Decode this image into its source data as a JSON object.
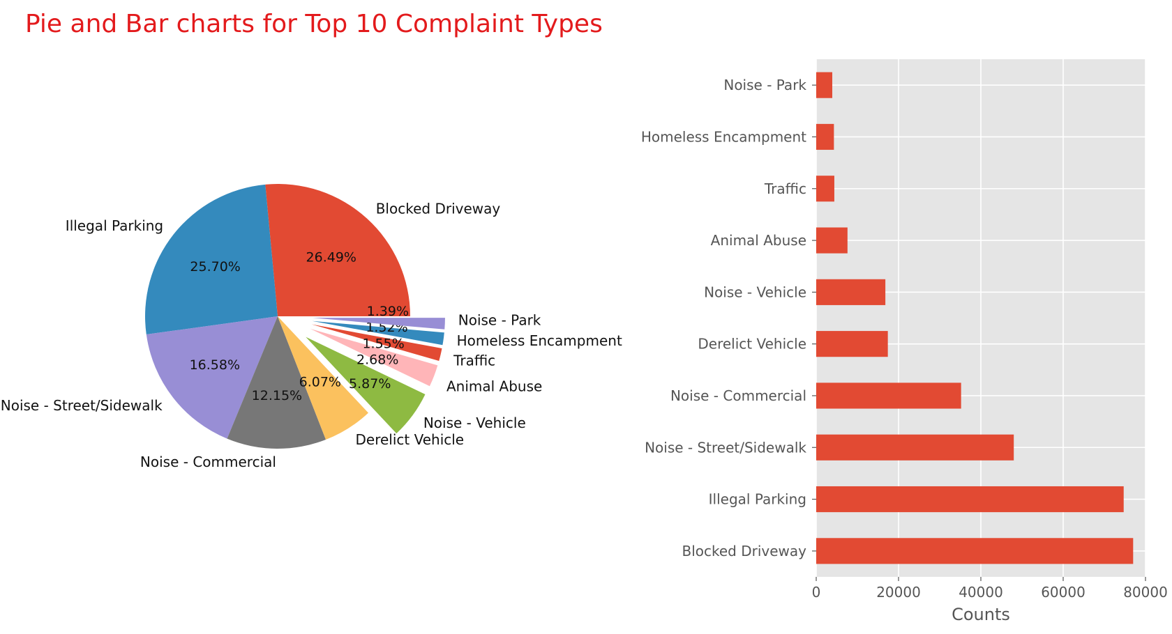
{
  "title": "Pie and Bar charts for Top 10 Complaint Types",
  "colors": {
    "title": "#e31a1c",
    "axes_background": "#e5e5e5",
    "grid": "#ffffff",
    "bar": "#e24a33",
    "tick_text": "#555555"
  },
  "chart_data": [
    {
      "type": "pie",
      "title": "",
      "slices": [
        {
          "label": "Blocked Driveway",
          "value": 26.49,
          "pct_label": "26.49%",
          "color": "#e24a33",
          "exploded": false
        },
        {
          "label": "Illegal Parking",
          "value": 25.7,
          "pct_label": "25.70%",
          "color": "#348abd",
          "exploded": false
        },
        {
          "label": "Noise - Street/Sidewalk",
          "value": 16.58,
          "pct_label": "16.58%",
          "color": "#988ed5",
          "exploded": false
        },
        {
          "label": "Noise - Commercial",
          "value": 12.15,
          "pct_label": "12.15%",
          "color": "#777777",
          "exploded": false
        },
        {
          "label": "Derelict Vehicle",
          "value": 6.07,
          "pct_label": "6.07%",
          "color": "#fbc15e",
          "exploded": false
        },
        {
          "label": "Noise - Vehicle",
          "value": 5.87,
          "pct_label": "5.87%",
          "color": "#8eba42",
          "exploded": true
        },
        {
          "label": "Animal Abuse",
          "value": 2.68,
          "pct_label": "2.68%",
          "color": "#ffb5b8",
          "exploded": true
        },
        {
          "label": "Traffic",
          "value": 1.55,
          "pct_label": "1.55%",
          "color": "#e24a33",
          "exploded": true
        },
        {
          "label": "Homeless Encampment",
          "value": 1.52,
          "pct_label": "1.52%",
          "color": "#348abd",
          "exploded": true
        },
        {
          "label": "Noise - Park",
          "value": 1.39,
          "pct_label": "1.39%",
          "color": "#988ed5",
          "exploded": true
        }
      ]
    },
    {
      "type": "bar",
      "orientation": "horizontal",
      "title": "",
      "categories": [
        "Blocked Driveway",
        "Illegal Parking",
        "Noise - Street/Sidewalk",
        "Noise - Commercial",
        "Derelict Vehicle",
        "Noise - Vehicle",
        "Animal Abuse",
        "Traffic",
        "Homeless Encampment",
        "Noise - Park"
      ],
      "values": [
        77000,
        74700,
        48000,
        35200,
        17400,
        16800,
        7600,
        4400,
        4300,
        3900
      ],
      "xlabel": "Counts",
      "ylabel": "",
      "xlim": [
        0,
        80000
      ],
      "xticks": [
        0,
        20000,
        40000,
        60000,
        80000
      ],
      "xtick_labels": [
        "0",
        "20000",
        "40000",
        "60000",
        "80000"
      ],
      "grid": true
    }
  ]
}
